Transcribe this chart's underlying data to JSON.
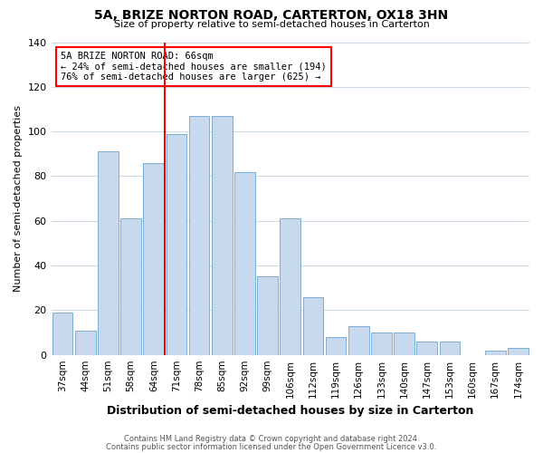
{
  "title": "5A, BRIZE NORTON ROAD, CARTERTON, OX18 3HN",
  "subtitle": "Size of property relative to semi-detached houses in Carterton",
  "xlabel": "Distribution of semi-detached houses by size in Carterton",
  "ylabel": "Number of semi-detached properties",
  "bar_color": "#c8d9ee",
  "bar_edge_color": "#7aafd4",
  "categories": [
    "37sqm",
    "44sqm",
    "51sqm",
    "58sqm",
    "64sqm",
    "71sqm",
    "78sqm",
    "85sqm",
    "92sqm",
    "99sqm",
    "106sqm",
    "112sqm",
    "119sqm",
    "126sqm",
    "133sqm",
    "140sqm",
    "147sqm",
    "153sqm",
    "160sqm",
    "167sqm",
    "174sqm"
  ],
  "values": [
    19,
    11,
    91,
    61,
    86,
    99,
    107,
    107,
    82,
    35,
    61,
    26,
    8,
    13,
    10,
    10,
    6,
    6,
    0,
    2,
    3
  ],
  "ylim": [
    0,
    140
  ],
  "yticks": [
    0,
    20,
    40,
    60,
    80,
    100,
    120,
    140
  ],
  "red_line_x": 4.5,
  "annotation_title": "5A BRIZE NORTON ROAD: 66sqm",
  "annotation_line1": "← 24% of semi-detached houses are smaller (194)",
  "annotation_line2": "76% of semi-detached houses are larger (625) →",
  "footer1": "Contains HM Land Registry data © Crown copyright and database right 2024.",
  "footer2": "Contains public sector information licensed under the Open Government Licence v3.0.",
  "background_color": "#ffffff"
}
